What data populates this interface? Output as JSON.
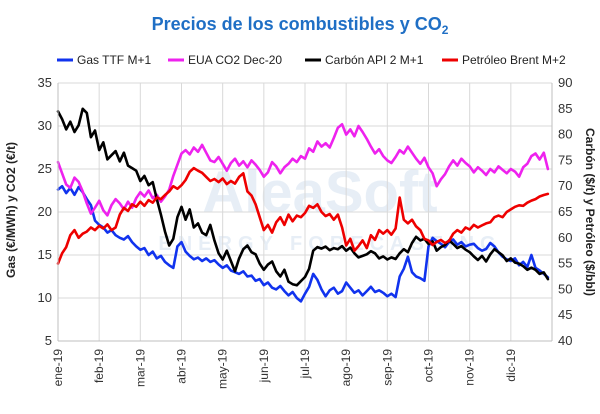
{
  "chart_data": {
    "type": "line",
    "title_main": "Precios de los combustibles y CO",
    "title_sub": "2",
    "ylabel_left": "Gas (€/MWh) y CO2 (€/t)",
    "ylabel_right": "Carbón ($/t) y Petróleo ($/bbl)",
    "ylim_left": [
      5,
      35
    ],
    "ylim_right": [
      40,
      90
    ],
    "yticks_left": [
      "5",
      "10",
      "15",
      "20",
      "25",
      "30",
      "35"
    ],
    "yticks_right": [
      "40",
      "45",
      "50",
      "55",
      "60",
      "65",
      "70",
      "75",
      "80",
      "85",
      "90"
    ],
    "categories": [
      "ene-19",
      "feb-19",
      "mar-19",
      "abr-19",
      "may-19",
      "jun-19",
      "jul-19",
      "ago-19",
      "sep-19",
      "oct-19",
      "nov-19",
      "dic-19"
    ],
    "grid": true,
    "legend_position": "top",
    "watermark": "AleaSoft",
    "watermark_sub": "ENERGY FORECASTING",
    "series": [
      {
        "name": "Gas TTF M+1",
        "color": "#1133ee",
        "axis": "left",
        "x": [
          0,
          0.1,
          0.2,
          0.3,
          0.4,
          0.5,
          0.6,
          0.7,
          0.8,
          0.9,
          1.0,
          1.1,
          1.2,
          1.3,
          1.4,
          1.5,
          1.6,
          1.7,
          1.8,
          1.9,
          2.0,
          2.1,
          2.2,
          2.3,
          2.4,
          2.5,
          2.6,
          2.7,
          2.8,
          2.9,
          3.0,
          3.1,
          3.2,
          3.3,
          3.4,
          3.5,
          3.6,
          3.7,
          3.8,
          3.9,
          4.0,
          4.1,
          4.2,
          4.3,
          4.4,
          4.5,
          4.6,
          4.7,
          4.8,
          4.9,
          5.0,
          5.1,
          5.2,
          5.3,
          5.4,
          5.5,
          5.6,
          5.7,
          5.8,
          5.9,
          6.0,
          6.1,
          6.2,
          6.3,
          6.4,
          6.5,
          6.6,
          6.7,
          6.8,
          6.9,
          7.0,
          7.1,
          7.2,
          7.3,
          7.4,
          7.5,
          7.6,
          7.7,
          7.8,
          7.9,
          8.0,
          8.1,
          8.2,
          8.3,
          8.4,
          8.5,
          8.6,
          8.7,
          8.8,
          8.9,
          9.0,
          9.1,
          9.2,
          9.3,
          9.4,
          9.5,
          9.6,
          9.7,
          9.8,
          9.9,
          10.0,
          10.1,
          10.2,
          10.3,
          10.4,
          10.5,
          10.6,
          10.7,
          10.8,
          10.9,
          11.0,
          11.1,
          11.2,
          11.3,
          11.4,
          11.5,
          11.6,
          11.7,
          11.8,
          11.9
        ],
        "values": [
          22.6,
          23.0,
          22.2,
          22.8,
          22.0,
          22.9,
          22.3,
          21.5,
          20.8,
          19.0,
          18.5,
          18.2,
          17.6,
          17.9,
          17.3,
          17.0,
          16.8,
          17.2,
          16.5,
          16.0,
          15.6,
          15.8,
          15.0,
          15.4,
          14.6,
          14.9,
          14.2,
          13.8,
          13.5,
          16.0,
          16.5,
          15.4,
          14.9,
          14.5,
          14.7,
          14.3,
          14.6,
          14.2,
          14.4,
          13.9,
          13.5,
          13.8,
          13.2,
          13.0,
          12.8,
          13.1,
          12.5,
          12.6,
          12.0,
          12.2,
          11.5,
          11.8,
          11.2,
          11.0,
          11.4,
          10.8,
          10.3,
          10.7,
          10.0,
          9.6,
          10.5,
          11.3,
          12.8,
          12.1,
          11.0,
          10.2,
          10.9,
          11.2,
          10.5,
          10.8,
          11.8,
          11.2,
          10.6,
          10.9,
          10.3,
          10.8,
          11.3,
          10.7,
          10.9,
          10.6,
          10.2,
          10.5,
          10.1,
          12.5,
          13.4,
          14.8,
          13.0,
          12.5,
          12.3,
          12.0,
          16.0,
          17.0,
          16.6,
          16.3,
          15.9,
          16.5,
          16.8,
          16.2,
          16.5,
          16.0,
          16.2,
          16.3,
          15.8,
          15.5,
          15.7,
          16.4,
          16.0,
          15.3,
          14.8,
          14.5,
          14.3,
          14.6,
          13.8,
          14.2,
          13.6,
          15.0,
          13.5,
          13.2,
          12.8,
          12.4
        ]
      },
      {
        "name": "EUA CO2 Dec-20",
        "color": "#ee22ee",
        "axis": "left",
        "x": [
          0,
          0.1,
          0.2,
          0.3,
          0.4,
          0.5,
          0.6,
          0.7,
          0.8,
          0.9,
          1.0,
          1.1,
          1.2,
          1.3,
          1.4,
          1.5,
          1.6,
          1.7,
          1.8,
          1.9,
          2.0,
          2.1,
          2.2,
          2.3,
          2.4,
          2.5,
          2.6,
          2.7,
          2.8,
          2.9,
          3.0,
          3.1,
          3.2,
          3.3,
          3.4,
          3.5,
          3.6,
          3.7,
          3.8,
          3.9,
          4.0,
          4.1,
          4.2,
          4.3,
          4.4,
          4.5,
          4.6,
          4.7,
          4.8,
          4.9,
          5.0,
          5.1,
          5.2,
          5.3,
          5.4,
          5.5,
          5.6,
          5.7,
          5.8,
          5.9,
          6.0,
          6.1,
          6.2,
          6.3,
          6.4,
          6.5,
          6.6,
          6.7,
          6.8,
          6.9,
          7.0,
          7.1,
          7.2,
          7.3,
          7.4,
          7.5,
          7.6,
          7.7,
          7.8,
          7.9,
          8.0,
          8.1,
          8.2,
          8.3,
          8.4,
          8.5,
          8.6,
          8.7,
          8.8,
          8.9,
          9.0,
          9.1,
          9.2,
          9.3,
          9.4,
          9.5,
          9.6,
          9.7,
          9.8,
          9.9,
          10.0,
          10.1,
          10.2,
          10.3,
          10.4,
          10.5,
          10.6,
          10.7,
          10.8,
          10.9,
          11.0,
          11.1,
          11.2,
          11.3,
          11.4,
          11.5,
          11.6,
          11.7,
          11.8,
          11.9
        ],
        "values": [
          25.8,
          24.5,
          23.2,
          22.8,
          24.0,
          23.5,
          22.4,
          21.0,
          19.8,
          20.5,
          21.3,
          20.2,
          19.6,
          20.8,
          21.5,
          21.0,
          20.3,
          21.2,
          20.5,
          21.6,
          22.3,
          21.8,
          22.5,
          21.6,
          22.0,
          21.2,
          21.8,
          22.6,
          24.2,
          25.5,
          26.8,
          27.2,
          26.7,
          27.5,
          27.0,
          27.8,
          26.9,
          26.0,
          25.8,
          26.4,
          25.6,
          24.8,
          25.7,
          26.2,
          25.4,
          25.9,
          25.2,
          26.0,
          25.5,
          24.9,
          24.1,
          24.6,
          25.8,
          25.3,
          24.5,
          25.2,
          25.6,
          26.2,
          25.8,
          26.5,
          26.2,
          27.4,
          27.0,
          28.2,
          27.6,
          28.0,
          27.5,
          28.6,
          29.8,
          30.2,
          29.0,
          29.6,
          28.8,
          30.0,
          29.3,
          28.5,
          27.6,
          26.8,
          27.3,
          26.5,
          26.0,
          25.7,
          26.4,
          27.2,
          26.8,
          27.6,
          26.9,
          26.2,
          25.6,
          26.3,
          25.2,
          24.5,
          23.0,
          23.8,
          24.4,
          25.3,
          26.0,
          25.4,
          26.2,
          25.7,
          25.3,
          24.6,
          25.2,
          24.8,
          24.3,
          25.0,
          24.6,
          25.3,
          24.9,
          24.5,
          25.0,
          24.7,
          24.1,
          25.2,
          25.6,
          26.5,
          26.8,
          26.1,
          26.9,
          25.0
        ]
      },
      {
        "name": "Carbón API 2 M+1",
        "color": "#000000",
        "axis": "right",
        "x": [
          0,
          0.1,
          0.2,
          0.3,
          0.4,
          0.5,
          0.6,
          0.7,
          0.8,
          0.9,
          1.0,
          1.1,
          1.2,
          1.3,
          1.4,
          1.5,
          1.6,
          1.7,
          1.8,
          1.9,
          2.0,
          2.1,
          2.2,
          2.3,
          2.4,
          2.5,
          2.6,
          2.7,
          2.8,
          2.9,
          3.0,
          3.1,
          3.2,
          3.3,
          3.4,
          3.5,
          3.6,
          3.7,
          3.8,
          3.9,
          4.0,
          4.1,
          4.2,
          4.3,
          4.4,
          4.5,
          4.6,
          4.7,
          4.8,
          4.9,
          5.0,
          5.1,
          5.2,
          5.3,
          5.4,
          5.5,
          5.6,
          5.7,
          5.8,
          5.9,
          6.0,
          6.1,
          6.2,
          6.3,
          6.4,
          6.5,
          6.6,
          6.7,
          6.8,
          6.9,
          7.0,
          7.1,
          7.2,
          7.3,
          7.4,
          7.5,
          7.6,
          7.7,
          7.8,
          7.9,
          8.0,
          8.1,
          8.2,
          8.3,
          8.4,
          8.5,
          8.6,
          8.7,
          8.8,
          8.9,
          9.0,
          9.1,
          9.2,
          9.3,
          9.4,
          9.5,
          9.6,
          9.7,
          9.8,
          9.9,
          10.0,
          10.1,
          10.2,
          10.3,
          10.4,
          10.5,
          10.6,
          10.7,
          10.8,
          10.9,
          11.0,
          11.1,
          11.2,
          11.3,
          11.4,
          11.5,
          11.6,
          11.7,
          11.8,
          11.9
        ],
        "values": [
          84.5,
          83.0,
          81.0,
          82.5,
          80.5,
          81.8,
          85.0,
          84.2,
          79.5,
          80.8,
          77.0,
          78.5,
          75.2,
          76.0,
          76.8,
          74.8,
          76.5,
          74.0,
          73.5,
          73.0,
          71.0,
          72.0,
          70.2,
          70.8,
          67.5,
          64.5,
          61.2,
          58.5,
          59.8,
          64.0,
          66.0,
          63.5,
          65.5,
          62.0,
          62.8,
          61.0,
          60.5,
          62.5,
          59.5,
          57.0,
          55.8,
          57.5,
          55.5,
          53.5,
          56.0,
          57.8,
          58.5,
          57.2,
          56.8,
          55.0,
          53.8,
          54.8,
          55.4,
          53.5,
          52.5,
          53.8,
          51.5,
          51.0,
          50.8,
          51.6,
          52.4,
          54.0,
          57.5,
          58.2,
          57.9,
          58.3,
          57.6,
          58.0,
          57.8,
          58.4,
          57.5,
          58.1,
          57.0,
          56.2,
          56.5,
          56.8,
          57.4,
          57.0,
          56.0,
          56.4,
          55.8,
          56.2,
          55.9,
          57.0,
          57.8,
          57.2,
          59.0,
          60.2,
          59.5,
          59.8,
          58.8,
          59.3,
          57.5,
          58.2,
          58.6,
          59.5,
          58.8,
          58.0,
          58.4,
          57.7,
          57.2,
          56.4,
          55.7,
          56.5,
          55.4,
          56.8,
          57.8,
          57.2,
          56.6,
          55.5,
          56.0,
          55.2,
          55.0,
          54.5,
          53.8,
          54.2,
          53.8,
          53.0,
          53.3,
          52.0
        ]
      },
      {
        "name": "Petróleo Brent M+2",
        "color": "#ee0000",
        "axis": "right",
        "x": [
          0,
          0.1,
          0.2,
          0.3,
          0.4,
          0.5,
          0.6,
          0.7,
          0.8,
          0.9,
          1.0,
          1.1,
          1.2,
          1.3,
          1.4,
          1.5,
          1.6,
          1.7,
          1.8,
          1.9,
          2.0,
          2.1,
          2.2,
          2.3,
          2.4,
          2.5,
          2.6,
          2.7,
          2.8,
          2.9,
          3.0,
          3.1,
          3.2,
          3.3,
          3.4,
          3.5,
          3.6,
          3.7,
          3.8,
          3.9,
          4.0,
          4.1,
          4.2,
          4.3,
          4.4,
          4.5,
          4.6,
          4.7,
          4.8,
          4.9,
          5.0,
          5.1,
          5.2,
          5.3,
          5.4,
          5.5,
          5.6,
          5.7,
          5.8,
          5.9,
          6.0,
          6.1,
          6.2,
          6.3,
          6.4,
          6.5,
          6.6,
          6.7,
          6.8,
          6.9,
          7.0,
          7.1,
          7.2,
          7.3,
          7.4,
          7.5,
          7.6,
          7.7,
          7.8,
          7.9,
          8.0,
          8.1,
          8.2,
          8.3,
          8.4,
          8.5,
          8.6,
          8.7,
          8.8,
          8.9,
          9.0,
          9.1,
          9.2,
          9.3,
          9.4,
          9.5,
          9.6,
          9.7,
          9.8,
          9.9,
          10.0,
          10.1,
          10.2,
          10.3,
          10.4,
          10.5,
          10.6,
          10.7,
          10.8,
          10.9,
          11.0,
          11.1,
          11.2,
          11.3,
          11.4,
          11.5,
          11.6,
          11.7,
          11.8,
          11.9
        ],
        "values": [
          55.0,
          57.0,
          58.2,
          60.5,
          61.5,
          60.0,
          60.8,
          61.2,
          62.0,
          61.5,
          62.3,
          61.8,
          62.6,
          61.5,
          62.0,
          64.5,
          65.8,
          65.2,
          66.5,
          66.0,
          67.0,
          66.2,
          67.3,
          66.8,
          67.8,
          67.5,
          68.3,
          69.0,
          70.0,
          69.5,
          70.2,
          71.2,
          72.8,
          73.5,
          73.0,
          72.6,
          71.8,
          71.0,
          71.4,
          70.8,
          71.5,
          70.4,
          71.0,
          70.5,
          71.8,
          72.5,
          69.0,
          68.2,
          66.5,
          64.0,
          61.5,
          62.5,
          61.0,
          63.0,
          64.0,
          62.5,
          64.5,
          63.2,
          64.3,
          64.0,
          64.8,
          66.2,
          65.8,
          66.5,
          65.0,
          64.2,
          64.6,
          63.5,
          64.5,
          62.0,
          58.5,
          59.8,
          57.5,
          58.4,
          59.5,
          58.0,
          60.5,
          59.6,
          61.5,
          60.8,
          61.5,
          60.6,
          61.8,
          67.8,
          63.5,
          62.8,
          63.5,
          62.2,
          61.5,
          59.8,
          59.5,
          58.6,
          59.2,
          59.6,
          59.0,
          59.4,
          60.8,
          61.5,
          61.0,
          62.0,
          61.6,
          62.5,
          62.0,
          62.4,
          62.8,
          63.0,
          64.0,
          64.3,
          64.0,
          65.0,
          65.5,
          66.0,
          66.3,
          66.2,
          66.8,
          67.2,
          67.5,
          68.0,
          68.3,
          68.5
        ]
      }
    ]
  }
}
